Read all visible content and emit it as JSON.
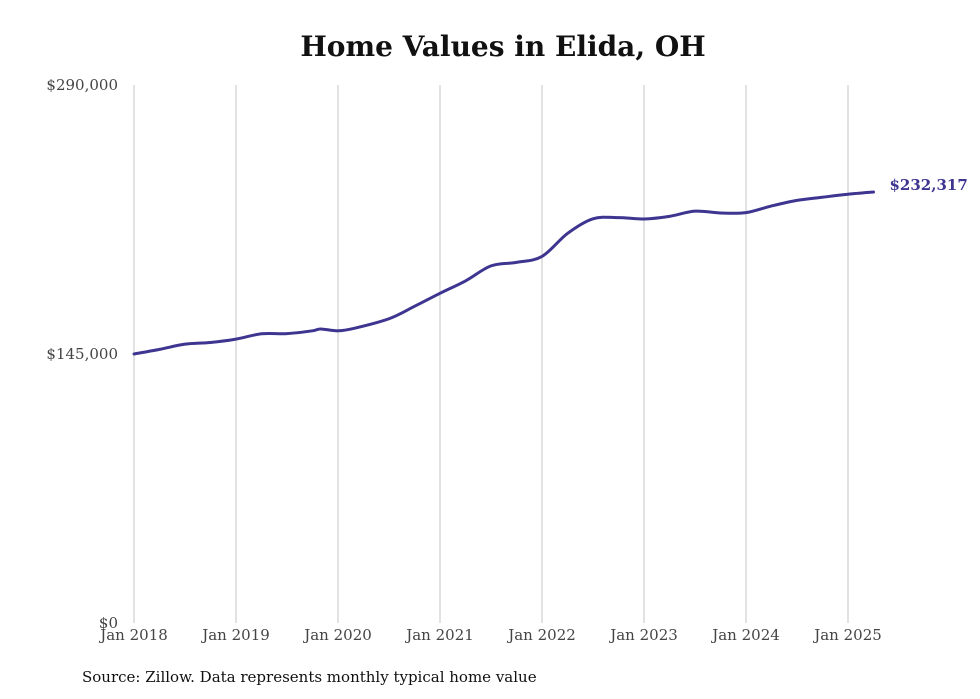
{
  "chart_data": {
    "type": "line",
    "title": "Home Values in Elida, OH",
    "xlabel": "",
    "ylabel": "",
    "ylim": [
      0,
      290000
    ],
    "y_ticks": [
      {
        "value": 0,
        "label": "$0"
      },
      {
        "value": 145000,
        "label": "$145,000"
      },
      {
        "value": 290000,
        "label": "$290,000"
      }
    ],
    "x_ticks": [
      {
        "value": 2018,
        "label": "Jan 2018"
      },
      {
        "value": 2019,
        "label": "Jan 2019"
      },
      {
        "value": 2020,
        "label": "Jan 2020"
      },
      {
        "value": 2021,
        "label": "Jan 2021"
      },
      {
        "value": 2022,
        "label": "Jan 2022"
      },
      {
        "value": 2023,
        "label": "Jan 2023"
      },
      {
        "value": 2024,
        "label": "Jan 2024"
      },
      {
        "value": 2025,
        "label": "Jan 2025"
      }
    ],
    "grid": "vertical",
    "series": [
      {
        "color": "#3d3590",
        "x": [
          2018.0,
          2018.25,
          2018.5,
          2018.75,
          2019.0,
          2019.25,
          2019.5,
          2019.75,
          2019.83,
          2020.0,
          2020.17,
          2020.5,
          2020.75,
          2021.0,
          2021.25,
          2021.5,
          2021.75,
          2022.0,
          2022.25,
          2022.5,
          2022.75,
          2023.0,
          2023.25,
          2023.5,
          2023.75,
          2024.0,
          2024.25,
          2024.5,
          2024.75,
          2025.0,
          2025.25
        ],
        "values": [
          145000,
          147500,
          150300,
          151200,
          153000,
          155900,
          156000,
          157500,
          158500,
          157500,
          159000,
          164000,
          170700,
          177700,
          184400,
          192500,
          194400,
          197600,
          210000,
          217900,
          218500,
          217800,
          219200,
          222000,
          221000,
          221200,
          224800,
          227800,
          229500,
          231100,
          232317
        ]
      }
    ],
    "end_label": "$232,317",
    "source": "Source: Zillow. Data represents monthly typical home value"
  }
}
